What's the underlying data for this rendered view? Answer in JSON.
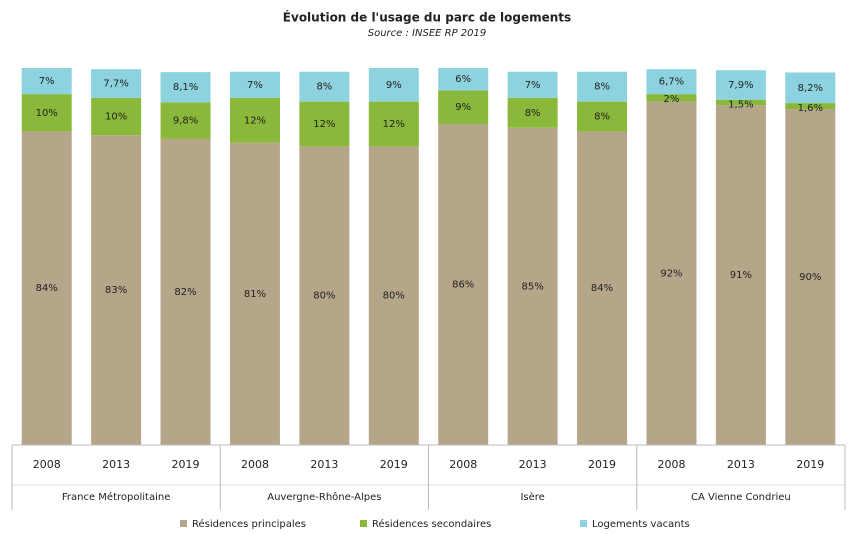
{
  "chart_data": {
    "type": "stacked_bar",
    "title": "Évolution de l'usage du parc de logements",
    "subtitle": "Source : INSEE RP 2019",
    "categories": [
      "2008",
      "2013",
      "2019",
      "2008",
      "2013",
      "2019",
      "2008",
      "2013",
      "2019",
      "2008",
      "2013",
      "2019"
    ],
    "groups": [
      "France Métropolitaine",
      "Auvergne-Rhône-Alpes",
      "Isère",
      "CA Vienne Condrieu"
    ],
    "series": [
      {
        "name": "Résidences principales",
        "color": "#b5a68a",
        "values": [
          84,
          83,
          82,
          81,
          80,
          80,
          86,
          85,
          84,
          92,
          91,
          90
        ],
        "value_labels": [
          "84%",
          "83%",
          "82%",
          "81%",
          "80%",
          "80%",
          "86%",
          "85%",
          "84%",
          "92%",
          "91%",
          "90%"
        ]
      },
      {
        "name": "Résidences secondaires",
        "color": "#8ab83a",
        "values": [
          10,
          10,
          9.8,
          12,
          12,
          12,
          9,
          8,
          8,
          2,
          1.5,
          1.6
        ],
        "value_labels": [
          "10%",
          "10%",
          "9,8%",
          "12%",
          "12%",
          "12%",
          "9%",
          "8%",
          "8%",
          "2%",
          "1,5%",
          "1,6%"
        ]
      },
      {
        "name": "Logements vacants",
        "color": "#8dd3df",
        "values": [
          7,
          7.7,
          8.1,
          7,
          8,
          9,
          6,
          7,
          8,
          6.7,
          7.9,
          8.2
        ],
        "value_labels": [
          "7%",
          "7,7%",
          "8,1%",
          "7%",
          "8%",
          "9%",
          "6%",
          "7%",
          "8%",
          "6,7%",
          "7,9%",
          "8,2%"
        ]
      }
    ]
  }
}
